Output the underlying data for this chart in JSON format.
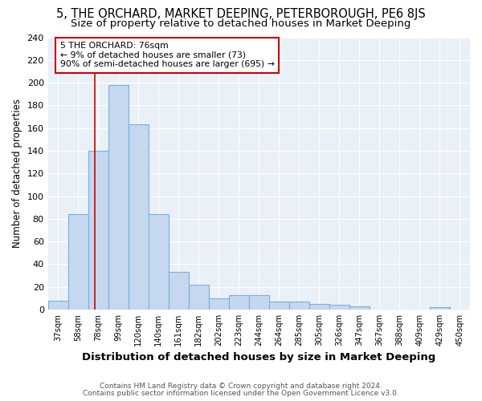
{
  "title": "5, THE ORCHARD, MARKET DEEPING, PETERBOROUGH, PE6 8JS",
  "subtitle": "Size of property relative to detached houses in Market Deeping",
  "xlabel": "Distribution of detached houses by size in Market Deeping",
  "ylabel": "Number of detached properties",
  "categories": [
    "37sqm",
    "58sqm",
    "78sqm",
    "99sqm",
    "120sqm",
    "140sqm",
    "161sqm",
    "182sqm",
    "202sqm",
    "223sqm",
    "244sqm",
    "264sqm",
    "285sqm",
    "305sqm",
    "326sqm",
    "347sqm",
    "367sqm",
    "388sqm",
    "409sqm",
    "429sqm",
    "450sqm"
  ],
  "values": [
    8,
    84,
    140,
    198,
    163,
    84,
    33,
    22,
    10,
    13,
    13,
    7,
    7,
    5,
    4,
    3,
    0,
    0,
    0,
    2,
    0
  ],
  "bar_color": "#c5d8f0",
  "bar_edge_color": "#7ab0d8",
  "bar_linewidth": 0.8,
  "property_line_x": 1.85,
  "property_line_color": "#cc0000",
  "annotation_text": "5 THE ORCHARD: 76sqm\n← 9% of detached houses are smaller (73)\n90% of semi-detached houses are larger (695) →",
  "annotation_box_color": "#ffffff",
  "annotation_box_edge_color": "#cc0000",
  "ylim": [
    0,
    240
  ],
  "yticks": [
    0,
    20,
    40,
    60,
    80,
    100,
    120,
    140,
    160,
    180,
    200,
    220,
    240
  ],
  "background_color": "#eaf0f8",
  "footnote1": "Contains HM Land Registry data © Crown copyright and database right 2024.",
  "footnote2": "Contains public sector information licensed under the Open Government Licence v3.0.",
  "title_fontsize": 10.5,
  "subtitle_fontsize": 9.5,
  "xlabel_fontsize": 9.5,
  "ylabel_fontsize": 8.5
}
